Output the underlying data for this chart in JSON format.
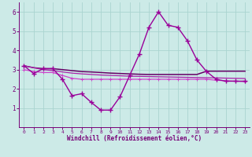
{
  "xlabel": "Windchill (Refroidissement éolien,°C)",
  "xlim": [
    -0.5,
    23.5
  ],
  "ylim": [
    0,
    6.5
  ],
  "yticks": [
    1,
    2,
    3,
    4,
    5,
    6
  ],
  "xticks": [
    0,
    1,
    2,
    3,
    4,
    5,
    6,
    7,
    8,
    9,
    10,
    11,
    12,
    13,
    14,
    15,
    16,
    17,
    18,
    19,
    20,
    21,
    22,
    23
  ],
  "background_color": "#cceae7",
  "grid_color": "#aad4d0",
  "spine_color": "#770077",
  "tick_color": "#770077",
  "label_color": "#770077",
  "line1_x": [
    0,
    1,
    2,
    3,
    4,
    5,
    6,
    7,
    8,
    9,
    10,
    11,
    12,
    13,
    14,
    15,
    16,
    17,
    18,
    19,
    20,
    21,
    22,
    23
  ],
  "line1_y": [
    3.2,
    2.8,
    3.05,
    3.05,
    2.5,
    1.65,
    1.75,
    1.3,
    0.9,
    0.9,
    1.6,
    2.7,
    3.8,
    5.2,
    6.0,
    5.3,
    5.2,
    4.5,
    3.5,
    2.9,
    2.5,
    2.4,
    2.4,
    2.4
  ],
  "line2_x": [
    0,
    1,
    2,
    3,
    4,
    5,
    6,
    7,
    8,
    9,
    10,
    11,
    12,
    13,
    14,
    15,
    16,
    17,
    18,
    19,
    20,
    21,
    22,
    23
  ],
  "line2_y": [
    3.0,
    2.9,
    2.85,
    2.85,
    2.7,
    2.55,
    2.5,
    2.5,
    2.5,
    2.5,
    2.5,
    2.5,
    2.5,
    2.5,
    2.5,
    2.5,
    2.5,
    2.5,
    2.5,
    2.5,
    2.45,
    2.42,
    2.4,
    2.38
  ],
  "line3_x": [
    0,
    1,
    2,
    3,
    4,
    5,
    6,
    7,
    8,
    9,
    10,
    11,
    12,
    13,
    14,
    15,
    16,
    17,
    18,
    19,
    20,
    21,
    22,
    23
  ],
  "line3_y": [
    3.2,
    3.1,
    3.05,
    3.05,
    3.0,
    2.95,
    2.9,
    2.88,
    2.85,
    2.82,
    2.8,
    2.78,
    2.76,
    2.75,
    2.75,
    2.75,
    2.75,
    2.75,
    2.75,
    2.92,
    2.92,
    2.92,
    2.92,
    2.92
  ],
  "line4_x": [
    0,
    1,
    2,
    3,
    4,
    5,
    6,
    7,
    8,
    9,
    10,
    11,
    12,
    13,
    14,
    15,
    16,
    17,
    18,
    19,
    20,
    21,
    22,
    23
  ],
  "line4_y": [
    3.2,
    3.1,
    3.0,
    2.95,
    2.88,
    2.82,
    2.78,
    2.75,
    2.72,
    2.7,
    2.68,
    2.66,
    2.65,
    2.64,
    2.63,
    2.62,
    2.61,
    2.6,
    2.59,
    2.58,
    2.57,
    2.56,
    2.55,
    2.54
  ],
  "line1_color": "#990099",
  "line2_color": "#cc44cc",
  "line3_color": "#660066",
  "line4_color": "#aa22aa"
}
